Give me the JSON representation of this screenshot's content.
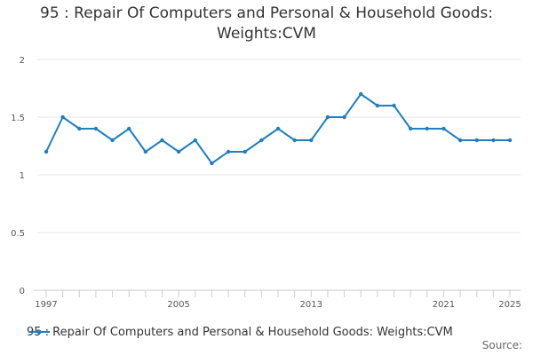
{
  "chart_data": {
    "type": "line",
    "title_lines": [
      "95 : Repair Of Computers and Personal & Household Goods:",
      "Weights:CVM"
    ],
    "x": [
      1997,
      1998,
      1999,
      2000,
      2001,
      2002,
      2003,
      2004,
      2005,
      2006,
      2007,
      2008,
      2009,
      2010,
      2011,
      2012,
      2013,
      2014,
      2015,
      2016,
      2017,
      2018,
      2019,
      2020,
      2021,
      2022,
      2023,
      2024,
      2025
    ],
    "series": [
      {
        "name": "95 : Repair Of Computers and Personal & Household Goods: Weights:CVM",
        "values": [
          1.2,
          1.5,
          1.4,
          1.4,
          1.3,
          1.4,
          1.2,
          1.3,
          1.2,
          1.3,
          1.1,
          1.2,
          1.2,
          1.3,
          1.4,
          1.3,
          1.3,
          1.5,
          1.5,
          1.7,
          1.6,
          1.6,
          1.4,
          1.4,
          1.4,
          1.3,
          1.3,
          1.3,
          1.3
        ]
      }
    ],
    "x_tick_labels": [
      "1997",
      "2005",
      "2013",
      "2021",
      "2025"
    ],
    "y_tick_labels": [
      "0",
      "0.5",
      "1",
      "1.5",
      "2"
    ],
    "ylim": [
      0,
      2
    ],
    "xlim": [
      1997,
      2025
    ],
    "grid": "horizontal",
    "legend_position": "bottom-left",
    "line_color": "#1f7fbf",
    "source_label": "Source:"
  }
}
